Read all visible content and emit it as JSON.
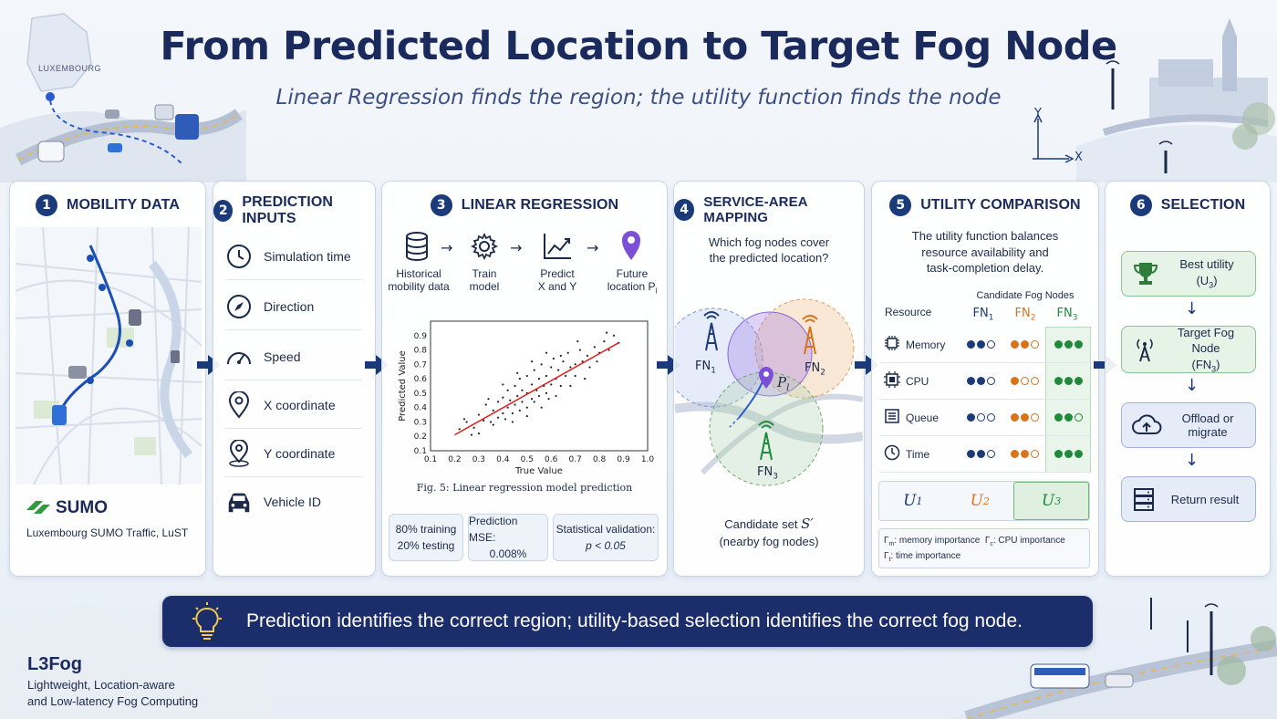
{
  "title": "From Predicted Location to Target Fog Node",
  "subtitle": "Linear Regression finds the region; the utility function finds the node",
  "map_label": "LUXEMBOURG",
  "axes": {
    "y": "Y",
    "x": "X"
  },
  "panels": [
    {
      "num": "1",
      "title": "MOBILITY DATA"
    },
    {
      "num": "2",
      "title": "PREDICTION INPUTS"
    },
    {
      "num": "3",
      "title": "LINEAR REGRESSION"
    },
    {
      "num": "4",
      "title": "SERVICE-AREA MAPPING"
    },
    {
      "num": "5",
      "title": "UTILITY COMPARISON"
    },
    {
      "num": "6",
      "title": "SELECTION"
    }
  ],
  "mobility": {
    "logo": "SUMO",
    "caption": "Luxembourg SUMO Traffic, LuST"
  },
  "inputs": [
    "Simulation time",
    "Direction",
    "Speed",
    "X coordinate",
    "Y coordinate",
    "Vehicle ID"
  ],
  "regression": {
    "steps": [
      {
        "l1": "Historical",
        "l2": "mobility data",
        "icon": "database-icon"
      },
      {
        "l1": "Train",
        "l2": "model",
        "icon": "gear-icon"
      },
      {
        "l1": "Predict",
        "l2": "X and Y",
        "icon": "trend-chart-icon"
      },
      {
        "l1": "Future",
        "l2": "location P",
        "l2sub": "l",
        "icon": "location-pin-icon"
      }
    ],
    "figure_caption": "Fig. 5: Linear regression model prediction",
    "stats": [
      {
        "l1": "80% training",
        "l2": "20% testing"
      },
      {
        "l1": "Prediction MSE:",
        "l2": "0.008%"
      },
      {
        "l1": "Statistical validation:",
        "l2": "p < 0.05"
      }
    ]
  },
  "chart_data": {
    "type": "scatter",
    "xlabel": "True Value",
    "ylabel": "Predicted Value",
    "xlim": [
      0.1,
      1.0
    ],
    "ylim": [
      0.1,
      1.0
    ],
    "xticks": [
      "0.1",
      "0.2",
      "0.3",
      "0.4",
      "0.5",
      "0.6",
      "0.7",
      "0.8",
      "0.9",
      "1.0"
    ],
    "yticks": [
      "0.1",
      "0.2",
      "0.3",
      "0.4",
      "0.5",
      "0.6",
      "0.7",
      "0.8",
      "0.9"
    ],
    "fit_line": {
      "x": [
        0.2,
        0.88
      ],
      "y": [
        0.21,
        0.85
      ],
      "color": "#e02020"
    },
    "points": [
      [
        0.22,
        0.25
      ],
      [
        0.25,
        0.3
      ],
      [
        0.28,
        0.26
      ],
      [
        0.3,
        0.35
      ],
      [
        0.32,
        0.31
      ],
      [
        0.33,
        0.42
      ],
      [
        0.35,
        0.3
      ],
      [
        0.36,
        0.38
      ],
      [
        0.38,
        0.44
      ],
      [
        0.38,
        0.33
      ],
      [
        0.4,
        0.47
      ],
      [
        0.4,
        0.36
      ],
      [
        0.42,
        0.4
      ],
      [
        0.42,
        0.52
      ],
      [
        0.43,
        0.45
      ],
      [
        0.44,
        0.36
      ],
      [
        0.45,
        0.55
      ],
      [
        0.45,
        0.42
      ],
      [
        0.46,
        0.48
      ],
      [
        0.47,
        0.6
      ],
      [
        0.48,
        0.44
      ],
      [
        0.48,
        0.52
      ],
      [
        0.5,
        0.5
      ],
      [
        0.5,
        0.62
      ],
      [
        0.5,
        0.4
      ],
      [
        0.52,
        0.56
      ],
      [
        0.52,
        0.46
      ],
      [
        0.53,
        0.66
      ],
      [
        0.54,
        0.52
      ],
      [
        0.55,
        0.6
      ],
      [
        0.55,
        0.48
      ],
      [
        0.56,
        0.7
      ],
      [
        0.57,
        0.55
      ],
      [
        0.58,
        0.62
      ],
      [
        0.58,
        0.5
      ],
      [
        0.6,
        0.68
      ],
      [
        0.6,
        0.56
      ],
      [
        0.61,
        0.74
      ],
      [
        0.62,
        0.6
      ],
      [
        0.63,
        0.66
      ],
      [
        0.64,
        0.55
      ],
      [
        0.65,
        0.72
      ],
      [
        0.66,
        0.62
      ],
      [
        0.67,
        0.78
      ],
      [
        0.68,
        0.68
      ],
      [
        0.7,
        0.7
      ],
      [
        0.7,
        0.62
      ],
      [
        0.72,
        0.8
      ],
      [
        0.73,
        0.72
      ],
      [
        0.75,
        0.76
      ],
      [
        0.76,
        0.68
      ],
      [
        0.78,
        0.82
      ],
      [
        0.8,
        0.78
      ],
      [
        0.82,
        0.86
      ],
      [
        0.84,
        0.8
      ],
      [
        0.86,
        0.9
      ],
      [
        0.88,
        0.85
      ],
      [
        0.3,
        0.22
      ],
      [
        0.36,
        0.28
      ],
      [
        0.44,
        0.3
      ],
      [
        0.5,
        0.34
      ],
      [
        0.56,
        0.4
      ],
      [
        0.62,
        0.48
      ],
      [
        0.68,
        0.55
      ],
      [
        0.74,
        0.6
      ],
      [
        0.4,
        0.56
      ],
      [
        0.46,
        0.64
      ],
      [
        0.52,
        0.72
      ],
      [
        0.58,
        0.78
      ],
      [
        0.24,
        0.32
      ],
      [
        0.27,
        0.21
      ],
      [
        0.34,
        0.46
      ],
      [
        0.41,
        0.32
      ],
      [
        0.47,
        0.38
      ],
      [
        0.53,
        0.44
      ],
      [
        0.59,
        0.46
      ],
      [
        0.64,
        0.76
      ],
      [
        0.71,
        0.86
      ],
      [
        0.79,
        0.72
      ],
      [
        0.83,
        0.92
      ]
    ]
  },
  "mapping": {
    "question_l1": "Which fog nodes cover",
    "question_l2": "the predicted location?",
    "nodes": [
      {
        "label": "FN",
        "sub": "1"
      },
      {
        "label": "FN",
        "sub": "2"
      },
      {
        "label": "FN",
        "sub": "3"
      }
    ],
    "pl_label": "P",
    "pl_sub": "l",
    "candidate_l1": "Candidate set",
    "candidate_sym": "S′",
    "candidate_l2": "(nearby fog nodes)"
  },
  "utility": {
    "desc_l1": "The utility function balances",
    "desc_l2": "resource availability and",
    "desc_l3": "task-completion delay.",
    "candidate_header": "Candidate Fog Nodes",
    "resource_header": "Resource",
    "nodes": [
      {
        "label": "FN",
        "sub": "1",
        "color": "#1b3a7a"
      },
      {
        "label": "FN",
        "sub": "2",
        "color": "#d9731a"
      },
      {
        "label": "FN",
        "sub": "3",
        "color": "#1f8a3a"
      }
    ],
    "rows": [
      {
        "name": "Memory",
        "icon": "chip-icon",
        "levels": [
          2,
          2,
          3
        ]
      },
      {
        "name": "CPU",
        "icon": "cpu-icon",
        "levels": [
          2,
          1,
          3
        ]
      },
      {
        "name": "Queue",
        "icon": "queue-icon",
        "levels": [
          1,
          2,
          2
        ]
      },
      {
        "name": "Time",
        "icon": "clock-icon",
        "levels": [
          2,
          2,
          3
        ]
      }
    ],
    "scores": [
      {
        "label": "U",
        "sub": "1"
      },
      {
        "label": "U",
        "sub": "2"
      },
      {
        "label": "U",
        "sub": "3"
      }
    ],
    "legend_l1a": "Γ",
    "legend_l1a_sub": "m",
    "legend_l1a_text": ": memory importance",
    "legend_l1b": "Γ",
    "legend_l1b_sub": "c",
    "legend_l1b_text": ": CPU importance",
    "legend_l2": "Γ",
    "legend_l2_sub": "t",
    "legend_l2_text": ": time importance"
  },
  "selection": {
    "best_l1": "Best utility",
    "best_l2": "(U",
    "best_l2_sub": "3",
    "best_l2_end": ")",
    "target_l1": "Target Fog Node",
    "target_l2": "(FN",
    "target_l2_sub": "3",
    "target_l2_end": ")",
    "offload": "Offload or migrate",
    "return": "Return result"
  },
  "banner": "Prediction identifies the correct region; utility-based selection identifies the correct fog node.",
  "footer": {
    "name": "L3Fog",
    "l1": "Lightweight, Location-aware",
    "l2": "and Low-latency Fog Computing"
  },
  "colors": {
    "navy": "#1b2d6b",
    "orange": "#d9731a",
    "green": "#1f8a3a",
    "purple": "#7b4fd6"
  }
}
